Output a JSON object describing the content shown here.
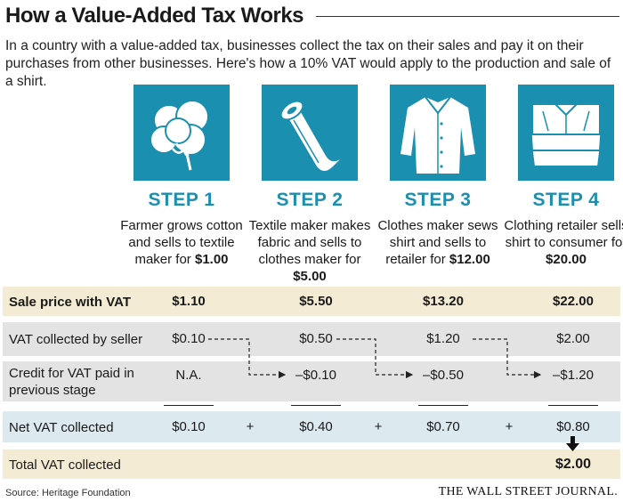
{
  "title": "How a Value-Added Tax Works",
  "subtitle": "In a country with a value-added tax, businesses collect the tax on their sales and pay it on their purchases from other businesses. Here's how a 10% VAT would apply to the production and sale of a shirt.",
  "steps": [
    {
      "label": "STEP 1",
      "desc": "Farmer grows cotton and sells to textile maker for",
      "price": "$1.00",
      "icon": "cotton-boll-icon"
    },
    {
      "label": "STEP 2",
      "desc": "Textile maker makes fabric and sells to clothes maker for",
      "price": "$5.00",
      "icon": "fabric-roll-icon"
    },
    {
      "label": "STEP 3",
      "desc": "Clothes maker sews shirt and sells to retailer for",
      "price": "$12.00",
      "icon": "shirt-icon"
    },
    {
      "label": "STEP 4",
      "desc": "Clothing retailer sells shirt to consumer for",
      "price": "$20.00",
      "icon": "folded-shirts-icon"
    }
  ],
  "rows": {
    "sale_price": {
      "label": "Sale price with VAT",
      "values": [
        "$1.10",
        "$5.50",
        "$13.20",
        "$22.00"
      ]
    },
    "vat_collected": {
      "label": "VAT collected by seller",
      "values": [
        "$0.10",
        "$0.50",
        "$1.20",
        "$2.00"
      ]
    },
    "credit": {
      "label": "Credit for VAT paid in previous stage",
      "values": [
        "N.A.",
        "–$0.10",
        "–$0.50",
        "–$1.20"
      ]
    },
    "net": {
      "label": "Net VAT collected",
      "values": [
        "$0.10",
        "$0.40",
        "$0.70",
        "$0.80"
      ],
      "operator": "+"
    },
    "total": {
      "label": "Total VAT collected",
      "value": "$2.00"
    }
  },
  "colors": {
    "accent": "#1b8fb0",
    "tan_row": "#f3ebd3",
    "gray_row": "#e3e3e3",
    "blue_row": "#dce9ef"
  },
  "source": "Source: Heritage Foundation",
  "publisher": "THE WALL STREET JOURNAL."
}
